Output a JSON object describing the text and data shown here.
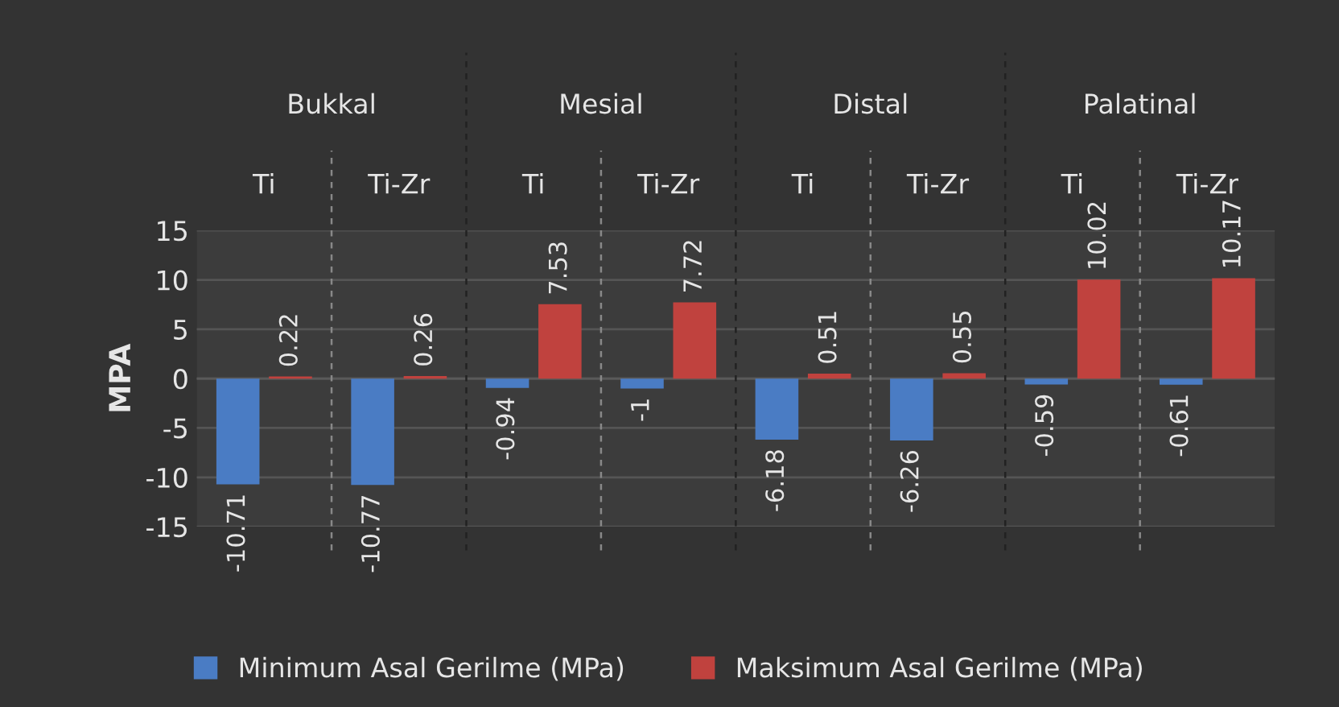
{
  "chart_data": {
    "type": "bar",
    "ylabel": "MPA",
    "categories": [
      "Ti",
      "Ti-Zr",
      "Ti",
      "Ti-Zr",
      "Ti",
      "Ti-Zr",
      "Ti",
      "Ti-Zr"
    ],
    "annotations": [
      "Bukkal",
      "Mesial",
      "Distal",
      "Palatinal"
    ],
    "series": [
      {
        "name": "Minimum Asal Gerilme (MPa)",
        "color": "#4a7cc4",
        "values": [
          -10.71,
          -10.77,
          -0.94,
          -1,
          -6.18,
          -6.26,
          -0.59,
          -0.61
        ]
      },
      {
        "name": "Maksimum Asal Gerilme (MPa)",
        "color": "#c0423e",
        "values": [
          0.22,
          0.26,
          7.53,
          7.72,
          0.51,
          0.55,
          10.02,
          10.17
        ]
      }
    ],
    "ylim": [
      -15,
      15
    ],
    "yticks": [
      -15,
      -10,
      -5,
      0,
      5,
      10,
      15
    ],
    "grid": "y",
    "data_labels": true,
    "legend": "bottom"
  }
}
